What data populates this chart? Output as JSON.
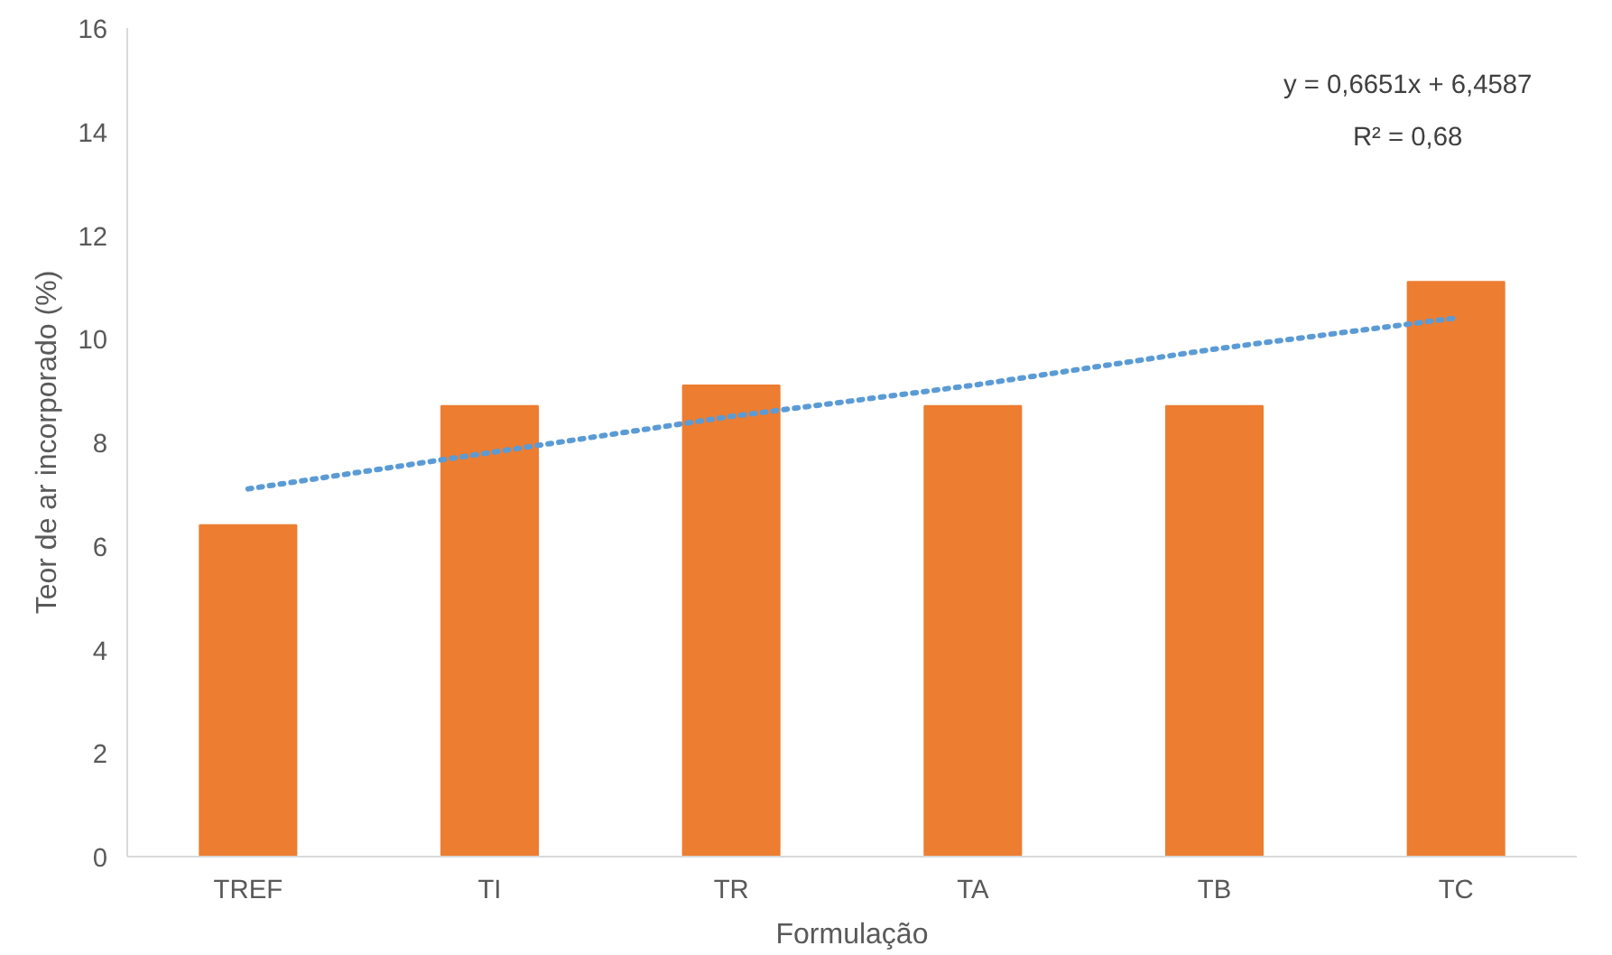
{
  "chart_data": {
    "type": "bar",
    "xlabel": "Formulação",
    "ylabel": "Teor de ar incorporado (%)",
    "categories": [
      "TREF",
      "TI",
      "TR",
      "TA",
      "TB",
      "TC"
    ],
    "ylim": [
      0,
      16
    ],
    "yticks": [
      0,
      2,
      4,
      6,
      8,
      10,
      12,
      14,
      16
    ],
    "grid": false,
    "series": [
      {
        "color": "#ed7d31",
        "values": [
          6.4,
          8.7,
          9.1,
          8.7,
          8.7,
          11.1
        ]
      },
      {
        "type": "line",
        "color": "#5b9bd5",
        "line_style": "dotted",
        "x": [
          "TREF",
          "TI",
          "TR",
          "TA",
          "TB",
          "TC"
        ],
        "values": [
          7.1,
          7.8,
          8.5,
          9.1,
          9.8,
          10.4
        ]
      }
    ],
    "annotations": [
      "y = 0,6651x + 6,4587\nR² = 0,68"
    ]
  }
}
